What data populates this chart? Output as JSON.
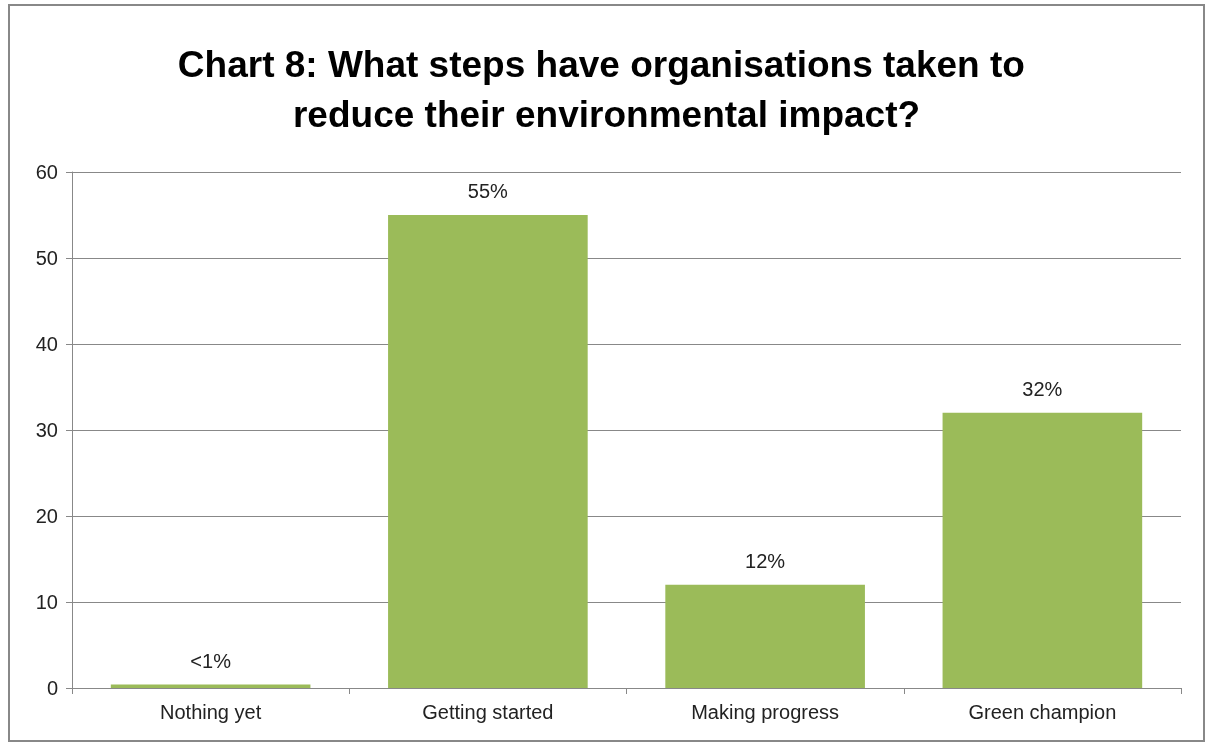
{
  "chart_data": {
    "type": "bar",
    "title": "Chart 8: What steps have organisations taken to reduce their environmental impact?",
    "categories": [
      "Nothing yet",
      "Getting started",
      "Making progress",
      "Green champion"
    ],
    "values": [
      0.4,
      55,
      12,
      32
    ],
    "value_labels": [
      "<1%",
      "55%",
      "12%",
      "32%"
    ],
    "color": "#9bbb59",
    "ylim": [
      0,
      60
    ],
    "yticks": [
      0,
      10,
      20,
      30,
      40,
      50,
      60
    ],
    "grid": "y"
  }
}
